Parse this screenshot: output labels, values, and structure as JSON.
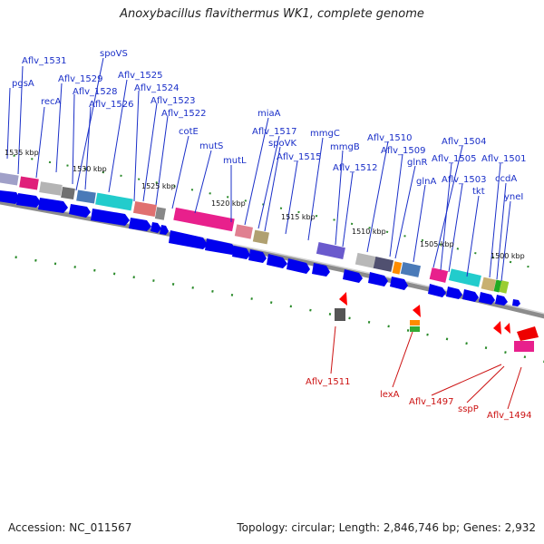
{
  "title": "Anoxybacillus flavithermus WK1, complete genome",
  "footer": {
    "accession": "Accession: NC_011567",
    "topology": "Topology: circular; Length: 2,846,746 bp; Genes: 2,932"
  },
  "colors": {
    "forward_arrow": "#0000ee",
    "reverse_arrow": "#ee0000",
    "forward_label": "#1a2fc8",
    "reverse_label": "#cc1111",
    "backbone": "#888888",
    "tick": "#118811"
  },
  "kbp_markers": [
    "1535 kbp",
    "1530 kbp",
    "1525 kbp",
    "1520 kbp",
    "1515 kbp",
    "1510 kbp",
    "1505 kbp",
    "1500 kbp"
  ],
  "forward_labels": [
    "pgsA",
    "Aflv_1531",
    "recA",
    "Aflv_1529",
    "Aflv_1528",
    "spoVS",
    "Aflv_1526",
    "Aflv_1525",
    "Aflv_1524",
    "Aflv_1523",
    "Aflv_1522",
    "cotE",
    "mutS",
    "mutL",
    "miaA",
    "Aflv_1517",
    "spoVK",
    "Aflv_1515",
    "mmgC",
    "mmgB",
    "Aflv_1512",
    "Aflv_1510",
    "Aflv_1509",
    "glnR",
    "glnA",
    "Aflv_1504",
    "Aflv_1505",
    "Aflv_1503",
    "tkt",
    "Aflv_1501",
    "ccdA",
    "yneI"
  ],
  "reverse_labels": [
    "Aflv_1511",
    "lexA",
    "Aflv_1497",
    "sspP",
    "Aflv_1494"
  ]
}
